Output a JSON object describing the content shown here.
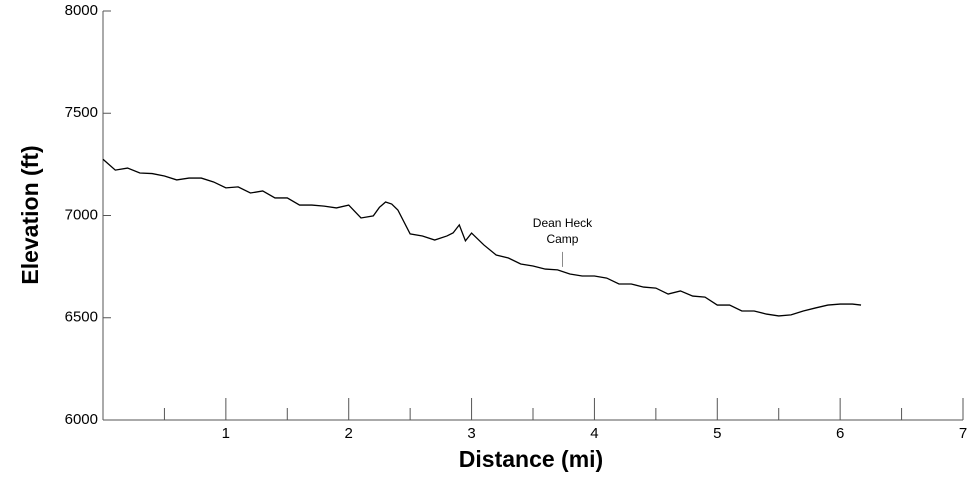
{
  "chart_data": {
    "type": "line",
    "xlabel": "Distance (mi)",
    "ylabel": "Elevation (ft)",
    "xlim": [
      0,
      7
    ],
    "ylim": [
      6000,
      8000
    ],
    "xticks": [
      1,
      2,
      3,
      4,
      5,
      6,
      7
    ],
    "xminorticks": [
      0.5,
      1.5,
      2.5,
      3.5,
      4.5,
      5.5,
      6.5
    ],
    "yticks": [
      6000,
      6500,
      7000,
      7500,
      8000
    ],
    "series": [
      {
        "color": "#000000",
        "x": [
          0,
          0.1,
          0.2,
          0.3,
          0.4,
          0.5,
          0.6,
          0.7,
          0.8,
          0.9,
          1.0,
          1.1,
          1.2,
          1.3,
          1.4,
          1.5,
          1.6,
          1.7,
          1.8,
          1.9,
          2.0,
          2.1,
          2.2,
          2.25,
          2.3,
          2.35,
          2.4,
          2.5,
          2.6,
          2.7,
          2.8,
          2.85,
          2.9,
          2.95,
          3.0,
          3.1,
          3.2,
          3.3,
          3.4,
          3.5,
          3.6,
          3.7,
          3.8,
          3.9,
          4.0,
          4.1,
          4.2,
          4.3,
          4.4,
          4.5,
          4.6,
          4.7,
          4.8,
          4.9,
          5.0,
          5.1,
          5.2,
          5.3,
          5.4,
          5.5,
          5.6,
          5.7,
          5.8,
          5.9,
          6.0,
          6.1,
          6.17
        ],
        "values": [
          7275,
          7222,
          7232,
          7208,
          7205,
          7193,
          7174,
          7183,
          7183,
          7164,
          7135,
          7140,
          7110,
          7120,
          7086,
          7086,
          7051,
          7051,
          7046,
          7037,
          7051,
          6988,
          6998,
          7040,
          7066,
          7056,
          7027,
          6910,
          6900,
          6880,
          6900,
          6915,
          6954,
          6876,
          6914,
          6856,
          6807,
          6792,
          6763,
          6753,
          6738,
          6734,
          6714,
          6704,
          6704,
          6694,
          6665,
          6665,
          6650,
          6645,
          6616,
          6631,
          6606,
          6601,
          6562,
          6562,
          6533,
          6533,
          6518,
          6509,
          6514,
          6533,
          6548,
          6562,
          6567,
          6567,
          6562
        ]
      }
    ],
    "annotations": [
      {
        "lines": [
          "Dean Heck",
          "Camp"
        ],
        "x": 3.74,
        "y": 6734
      }
    ],
    "grid": false
  }
}
